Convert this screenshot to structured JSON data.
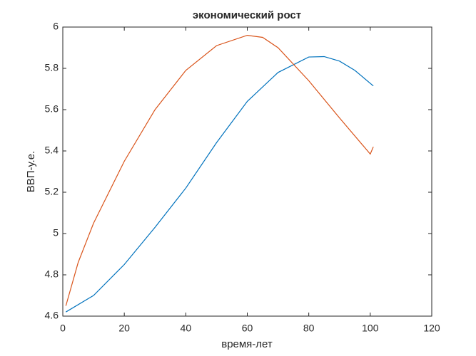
{
  "chart_data": {
    "type": "line",
    "title": "экономический рост",
    "x_label": "время-лет",
    "y_label": "ВВП-у.е.",
    "series": [
      {
        "color": "#0072bd",
        "x": [
          1,
          10,
          20,
          30,
          40,
          50,
          60,
          70,
          80,
          85,
          90,
          95,
          101
        ],
        "values": [
          4.62,
          4.7,
          4.85,
          5.03,
          5.22,
          5.44,
          5.64,
          5.78,
          5.855,
          5.857,
          5.835,
          5.79,
          5.715
        ]
      },
      {
        "color": "#d95319",
        "x": [
          1,
          5,
          10,
          20,
          30,
          40,
          50,
          60,
          65,
          70,
          80,
          90,
          100,
          101
        ],
        "values": [
          4.65,
          4.86,
          5.05,
          5.35,
          5.6,
          5.79,
          5.91,
          5.96,
          5.95,
          5.9,
          5.74,
          5.56,
          5.385,
          5.42
        ]
      }
    ],
    "xlim": [
      0,
      120
    ],
    "xticks": [
      0,
      20,
      40,
      60,
      80,
      100,
      120
    ],
    "ylim": [
      4.6,
      6
    ],
    "yticks": [
      4.6,
      4.8,
      5,
      5.2,
      5.4,
      5.6,
      5.8,
      6
    ],
    "grid": false
  }
}
